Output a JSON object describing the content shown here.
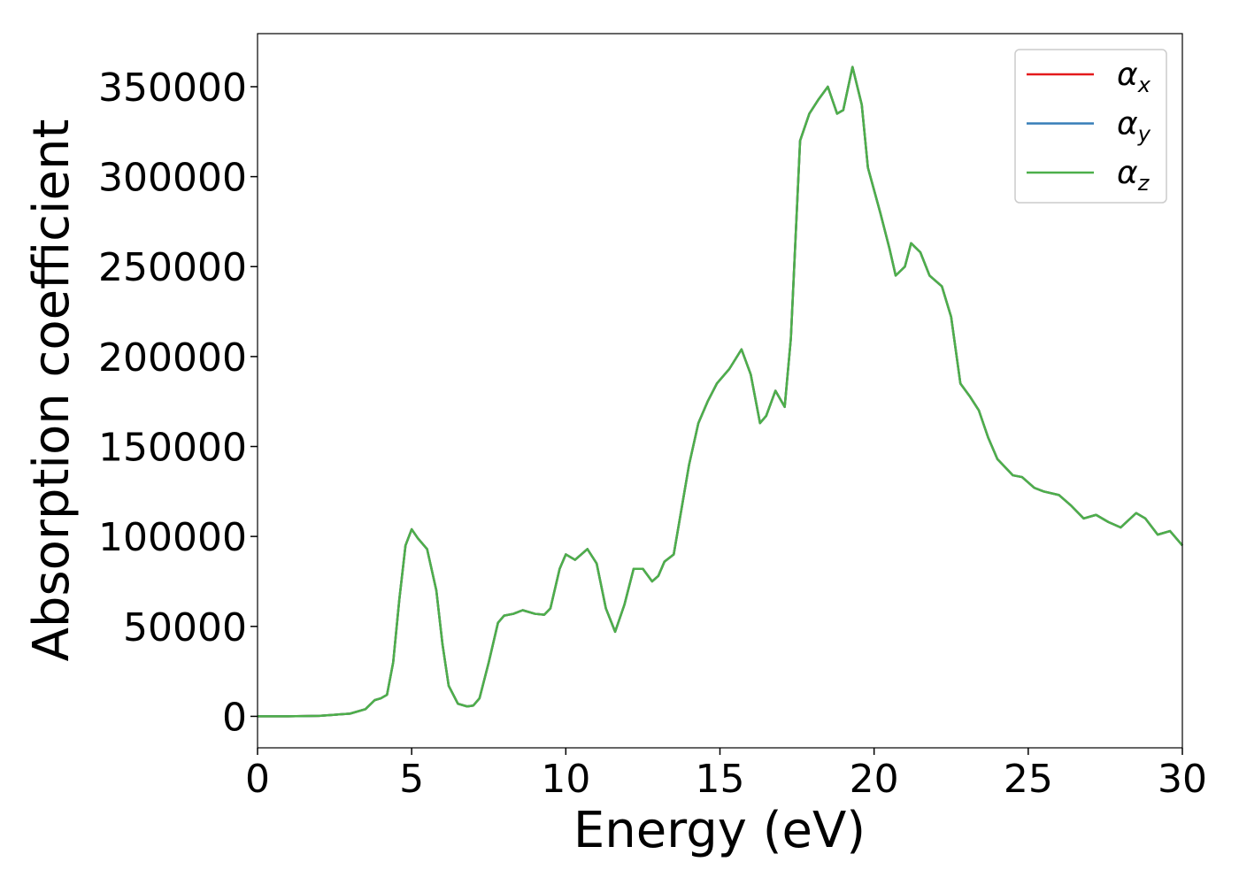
{
  "chart_data": {
    "type": "line",
    "x_label": "Energy (eV)",
    "y_label": "Absorption coefficient",
    "x": [
      0,
      1,
      2,
      3,
      3.5,
      3.8,
      4.0,
      4.2,
      4.4,
      4.6,
      4.8,
      5.0,
      5.2,
      5.5,
      5.8,
      6.0,
      6.2,
      6.5,
      6.8,
      7.0,
      7.2,
      7.5,
      7.8,
      8.0,
      8.3,
      8.6,
      9.0,
      9.3,
      9.5,
      9.8,
      10.0,
      10.3,
      10.7,
      11.0,
      11.3,
      11.6,
      11.9,
      12.2,
      12.5,
      12.8,
      13.0,
      13.2,
      13.5,
      13.8,
      14.0,
      14.3,
      14.6,
      14.9,
      15.3,
      15.7,
      16.0,
      16.3,
      16.5,
      16.8,
      17.1,
      17.3,
      17.6,
      17.9,
      18.2,
      18.5,
      18.8,
      19.0,
      19.3,
      19.6,
      19.8,
      20.2,
      20.5,
      20.7,
      21.0,
      21.2,
      21.5,
      21.8,
      22.2,
      22.5,
      22.8,
      23.1,
      23.4,
      23.7,
      24.0,
      24.5,
      24.8,
      25.2,
      25.5,
      26.0,
      26.4,
      26.8,
      27.2,
      27.6,
      28.0,
      28.5,
      28.8,
      29.2,
      29.6,
      30
    ],
    "series": [
      {
        "name": "αx",
        "color": "#e41a1c",
        "values": [
          0,
          0,
          300,
          1500,
          4000,
          9000,
          10000,
          12000,
          30000,
          65000,
          95000,
          104000,
          99000,
          93000,
          70000,
          40000,
          17000,
          7000,
          5500,
          6000,
          10000,
          30000,
          52000,
          56000,
          57000,
          59000,
          57000,
          56500,
          60000,
          82000,
          90000,
          87000,
          93000,
          85000,
          60000,
          47000,
          62000,
          82000,
          82000,
          75000,
          78000,
          86000,
          90000,
          120000,
          140000,
          163000,
          175000,
          185000,
          193000,
          204000,
          190000,
          163000,
          167000,
          181000,
          172000,
          210000,
          320000,
          335000,
          343000,
          350000,
          335000,
          337000,
          361000,
          340000,
          305000,
          280000,
          260000,
          245000,
          250000,
          263000,
          258000,
          245000,
          239000,
          222000,
          185000,
          178000,
          170000,
          155000,
          143000,
          134000,
          133000,
          127000,
          125000,
          123000,
          117000,
          110000,
          112000,
          108000,
          105000,
          113000,
          110000,
          101000,
          103000,
          95000
        ]
      },
      {
        "name": "αy",
        "color": "#377eb8",
        "values": [
          0,
          0,
          300,
          1500,
          4000,
          9000,
          10000,
          12000,
          30000,
          65000,
          95000,
          104000,
          99000,
          93000,
          70000,
          40000,
          17000,
          7000,
          5500,
          6000,
          10000,
          30000,
          52000,
          56000,
          57000,
          59000,
          57000,
          56500,
          60000,
          82000,
          90000,
          87000,
          93000,
          85000,
          60000,
          47000,
          62000,
          82000,
          82000,
          75000,
          78000,
          86000,
          90000,
          120000,
          140000,
          163000,
          175000,
          185000,
          193000,
          204000,
          190000,
          163000,
          167000,
          181000,
          172000,
          210000,
          320000,
          335000,
          343000,
          350000,
          335000,
          337000,
          361000,
          340000,
          305000,
          280000,
          260000,
          245000,
          250000,
          263000,
          258000,
          245000,
          239000,
          222000,
          185000,
          178000,
          170000,
          155000,
          143000,
          134000,
          133000,
          127000,
          125000,
          123000,
          117000,
          110000,
          112000,
          108000,
          105000,
          113000,
          110000,
          101000,
          103000,
          95000
        ]
      },
      {
        "name": "αz",
        "color": "#4daf4a",
        "values": [
          0,
          0,
          300,
          1500,
          4000,
          9000,
          10000,
          12000,
          30000,
          65000,
          95000,
          104000,
          99000,
          93000,
          70000,
          40000,
          17000,
          7000,
          5500,
          6000,
          10000,
          30000,
          52000,
          56000,
          57000,
          59000,
          57000,
          56500,
          60000,
          82000,
          90000,
          87000,
          93000,
          85000,
          60000,
          47000,
          62000,
          82000,
          82000,
          75000,
          78000,
          86000,
          90000,
          120000,
          140000,
          163000,
          175000,
          185000,
          193000,
          204000,
          190000,
          163000,
          167000,
          181000,
          172000,
          210000,
          320000,
          335000,
          343000,
          350000,
          335000,
          337000,
          361000,
          340000,
          305000,
          280000,
          260000,
          245000,
          250000,
          263000,
          258000,
          245000,
          239000,
          222000,
          185000,
          178000,
          170000,
          155000,
          143000,
          134000,
          133000,
          127000,
          125000,
          123000,
          117000,
          110000,
          112000,
          108000,
          105000,
          113000,
          110000,
          101000,
          103000,
          95000
        ]
      }
    ],
    "xlim": [
      0,
      30
    ],
    "xticks": [
      0,
      5,
      10,
      15,
      20,
      25,
      30
    ],
    "ylim": [
      -17500,
      379500
    ],
    "yticks": [
      0,
      50000,
      100000,
      150000,
      200000,
      250000,
      300000,
      350000
    ],
    "grid": false,
    "legend": "upper right"
  }
}
